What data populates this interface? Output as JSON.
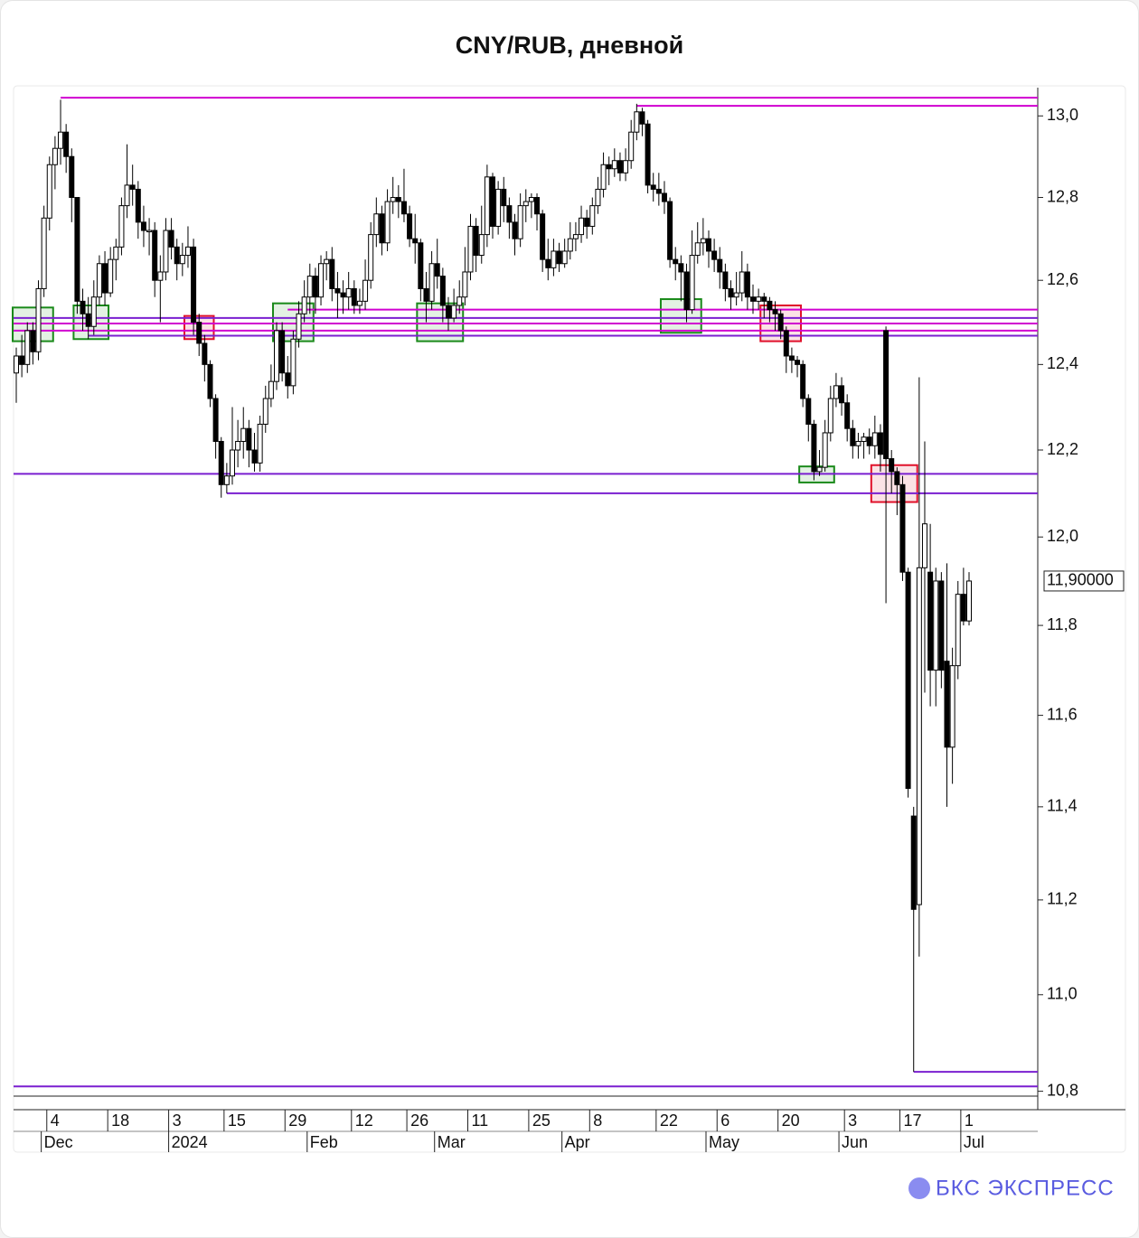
{
  "chart_data": {
    "type": "candlestick",
    "title": "CNY/RUB, дневной",
    "brand": "БКС ЭКСПРЕСС",
    "log_scale": true,
    "ylim": [
      10.79,
      13.07
    ],
    "yticks": [
      {
        "value": 10.8,
        "label": "10,8"
      },
      {
        "value": 11.0,
        "label": "11,0"
      },
      {
        "value": 11.2,
        "label": "11,2"
      },
      {
        "value": 11.4,
        "label": "11,4"
      },
      {
        "value": 11.6,
        "label": "11,6"
      },
      {
        "value": 11.8,
        "label": "11,8"
      },
      {
        "value": 12.0,
        "label": "12,0"
      },
      {
        "value": 12.2,
        "label": "12,2"
      },
      {
        "value": 12.4,
        "label": "12,4"
      },
      {
        "value": 12.6,
        "label": "12,6"
      },
      {
        "value": 12.8,
        "label": "12,8"
      },
      {
        "value": 13.0,
        "label": "13,0"
      }
    ],
    "last_price": {
      "value": 11.9,
      "label": "11,90000"
    },
    "up_color": "#ffffff",
    "down_color": "#000000",
    "day_ticks": [
      [
        6,
        "4"
      ],
      [
        17,
        "18"
      ],
      [
        28,
        "3"
      ],
      [
        38,
        "15"
      ],
      [
        49,
        "29"
      ],
      [
        61,
        "12"
      ],
      [
        71,
        "26"
      ],
      [
        82,
        "11"
      ],
      [
        93,
        "25"
      ],
      [
        104,
        "8"
      ],
      [
        116,
        "22"
      ],
      [
        127,
        "6"
      ],
      [
        138,
        "20"
      ],
      [
        150,
        "3"
      ],
      [
        160,
        "17"
      ],
      [
        171,
        "1"
      ]
    ],
    "month_ticks": [
      [
        5,
        "Dec"
      ],
      [
        28,
        "2024"
      ],
      [
        53,
        "Feb"
      ],
      [
        76,
        "Mar"
      ],
      [
        99,
        "Apr"
      ],
      [
        125,
        "May"
      ],
      [
        149,
        "Jun"
      ],
      [
        171,
        "Jul"
      ]
    ],
    "levels": [
      {
        "value": 13.045,
        "color": "#d000d0",
        "from": 8
      },
      {
        "value": 13.025,
        "color": "#d000d0",
        "from": 112
      },
      {
        "value": 12.53,
        "color": "#d000d0",
        "from": 49
      },
      {
        "value": 12.51,
        "color": "#7a1fd0",
        "from": 0
      },
      {
        "value": 12.497,
        "color": "#d000d0",
        "from": 0
      },
      {
        "value": 12.48,
        "color": "#d000d0",
        "from": 0
      },
      {
        "value": 12.468,
        "color": "#7a1fd0",
        "from": 13
      },
      {
        "value": 12.145,
        "color": "#7a1fd0",
        "from": 0
      },
      {
        "value": 12.1,
        "color": "#7a1fd0",
        "from": 38
      },
      {
        "value": 10.84,
        "color": "#7a1fd0",
        "from": 162
      },
      {
        "value": 10.81,
        "color": "#7a1fd0",
        "from": 0
      }
    ],
    "highlights": [
      {
        "from": 0,
        "to": 6,
        "low": 12.455,
        "high": 12.535,
        "color": "#1a8a1a"
      },
      {
        "from": 11,
        "to": 16,
        "low": 12.46,
        "high": 12.54,
        "color": "#1a8a1a"
      },
      {
        "from": 31,
        "to": 35,
        "low": 12.46,
        "high": 12.515,
        "color": "#e0102a"
      },
      {
        "from": 47,
        "to": 53,
        "low": 12.455,
        "high": 12.545,
        "color": "#1a8a1a"
      },
      {
        "from": 73,
        "to": 80,
        "low": 12.455,
        "high": 12.545,
        "color": "#1a8a1a"
      },
      {
        "from": 117,
        "to": 123,
        "low": 12.475,
        "high": 12.555,
        "color": "#1a8a1a"
      },
      {
        "from": 135,
        "to": 141,
        "low": 12.455,
        "high": 12.54,
        "color": "#e0102a"
      },
      {
        "from": 142,
        "to": 147,
        "low": 12.125,
        "high": 12.162,
        "color": "#1a8a1a"
      },
      {
        "from": 155,
        "to": 162,
        "low": 12.08,
        "high": 12.165,
        "color": "#e0102a"
      }
    ],
    "candles": [
      [
        12.38,
        12.44,
        12.31,
        12.42
      ],
      [
        12.42,
        12.47,
        12.37,
        12.4
      ],
      [
        12.4,
        12.5,
        12.38,
        12.48
      ],
      [
        12.48,
        12.5,
        12.4,
        12.43
      ],
      [
        12.43,
        12.6,
        12.41,
        12.58
      ],
      [
        12.58,
        12.78,
        12.56,
        12.75
      ],
      [
        12.75,
        12.9,
        12.72,
        12.88
      ],
      [
        12.88,
        12.95,
        12.82,
        12.92
      ],
      [
        12.92,
        13.04,
        12.88,
        12.96
      ],
      [
        12.96,
        12.98,
        12.86,
        12.9
      ],
      [
        12.9,
        12.92,
        12.74,
        12.8
      ],
      [
        12.8,
        12.8,
        12.52,
        12.55
      ],
      [
        12.55,
        12.58,
        12.48,
        12.52
      ],
      [
        12.52,
        12.56,
        12.46,
        12.49
      ],
      [
        12.49,
        12.6,
        12.47,
        12.56
      ],
      [
        12.56,
        12.66,
        12.54,
        12.64
      ],
      [
        12.64,
        12.67,
        12.54,
        12.57
      ],
      [
        12.57,
        12.68,
        12.56,
        12.65
      ],
      [
        12.65,
        12.7,
        12.6,
        12.68
      ],
      [
        12.68,
        12.8,
        12.66,
        12.78
      ],
      [
        12.78,
        12.93,
        12.75,
        12.83
      ],
      [
        12.83,
        12.88,
        12.78,
        12.82
      ],
      [
        12.82,
        12.84,
        12.7,
        12.74
      ],
      [
        12.74,
        12.78,
        12.68,
        12.72
      ],
      [
        12.72,
        12.75,
        12.66,
        12.72
      ],
      [
        12.72,
        12.74,
        12.56,
        12.6
      ],
      [
        12.6,
        12.66,
        12.5,
        12.62
      ],
      [
        12.62,
        12.75,
        12.6,
        12.72
      ],
      [
        12.72,
        12.75,
        12.65,
        12.68
      ],
      [
        12.68,
        12.7,
        12.6,
        12.64
      ],
      [
        12.64,
        12.69,
        12.61,
        12.66
      ],
      [
        12.66,
        12.73,
        12.63,
        12.68
      ],
      [
        12.68,
        12.7,
        12.47,
        12.5
      ],
      [
        12.5,
        12.52,
        12.42,
        12.45
      ],
      [
        12.45,
        12.47,
        12.36,
        12.4
      ],
      [
        12.4,
        12.41,
        12.3,
        12.32
      ],
      [
        12.32,
        12.33,
        12.18,
        12.22
      ],
      [
        12.22,
        12.23,
        12.09,
        12.12
      ],
      [
        12.12,
        12.17,
        12.1,
        12.14
      ],
      [
        12.14,
        12.3,
        12.12,
        12.2
      ],
      [
        12.2,
        12.27,
        12.16,
        12.22
      ],
      [
        12.22,
        12.3,
        12.18,
        12.25
      ],
      [
        12.25,
        12.27,
        12.16,
        12.2
      ],
      [
        12.2,
        12.24,
        12.15,
        12.17
      ],
      [
        12.17,
        12.28,
        12.15,
        12.26
      ],
      [
        12.26,
        12.35,
        12.24,
        12.32
      ],
      [
        12.32,
        12.4,
        12.3,
        12.36
      ],
      [
        12.36,
        12.5,
        12.34,
        12.48
      ],
      [
        12.48,
        12.5,
        12.36,
        12.38
      ],
      [
        12.38,
        12.42,
        12.32,
        12.35
      ],
      [
        12.35,
        12.48,
        12.33,
        12.46
      ],
      [
        12.46,
        12.55,
        12.44,
        12.52
      ],
      [
        12.52,
        12.6,
        12.5,
        12.56
      ],
      [
        12.56,
        12.64,
        12.52,
        12.61
      ],
      [
        12.61,
        12.63,
        12.52,
        12.56
      ],
      [
        12.56,
        12.66,
        12.54,
        12.64
      ],
      [
        12.64,
        12.67,
        12.6,
        12.65
      ],
      [
        12.65,
        12.68,
        12.55,
        12.58
      ],
      [
        12.58,
        12.62,
        12.51,
        12.57
      ],
      [
        12.57,
        12.6,
        12.52,
        12.56
      ],
      [
        12.56,
        12.62,
        12.53,
        12.58
      ],
      [
        12.58,
        12.6,
        12.52,
        12.54
      ],
      [
        12.54,
        12.58,
        12.52,
        12.55
      ],
      [
        12.55,
        12.65,
        12.53,
        12.6
      ],
      [
        12.6,
        12.74,
        12.58,
        12.71
      ],
      [
        12.71,
        12.8,
        12.68,
        12.76
      ],
      [
        12.76,
        12.78,
        12.66,
        12.69
      ],
      [
        12.69,
        12.82,
        12.67,
        12.79
      ],
      [
        12.79,
        12.85,
        12.76,
        12.8
      ],
      [
        12.8,
        12.83,
        12.75,
        12.79
      ],
      [
        12.79,
        12.87,
        12.74,
        12.76
      ],
      [
        12.76,
        12.78,
        12.68,
        12.7
      ],
      [
        12.7,
        12.76,
        12.64,
        12.69
      ],
      [
        12.69,
        12.7,
        12.55,
        12.58
      ],
      [
        12.58,
        12.62,
        12.5,
        12.55
      ],
      [
        12.55,
        12.67,
        12.53,
        12.64
      ],
      [
        12.64,
        12.7,
        12.58,
        12.61
      ],
      [
        12.61,
        12.63,
        12.5,
        12.54
      ],
      [
        12.54,
        12.56,
        12.48,
        12.51
      ],
      [
        12.51,
        12.58,
        12.5,
        12.54
      ],
      [
        12.54,
        12.6,
        12.52,
        12.56
      ],
      [
        12.56,
        12.68,
        12.54,
        12.62
      ],
      [
        12.62,
        12.76,
        12.6,
        12.73
      ],
      [
        12.73,
        12.75,
        12.62,
        12.66
      ],
      [
        12.66,
        12.78,
        12.64,
        12.71
      ],
      [
        12.71,
        12.88,
        12.68,
        12.85
      ],
      [
        12.85,
        12.86,
        12.7,
        12.73
      ],
      [
        12.73,
        12.84,
        12.71,
        12.82
      ],
      [
        12.82,
        12.85,
        12.74,
        12.78
      ],
      [
        12.78,
        12.8,
        12.7,
        12.74
      ],
      [
        12.74,
        12.76,
        12.66,
        12.7
      ],
      [
        12.7,
        12.81,
        12.68,
        12.78
      ],
      [
        12.78,
        12.82,
        12.74,
        12.79
      ],
      [
        12.79,
        12.81,
        12.75,
        12.8
      ],
      [
        12.8,
        12.81,
        12.72,
        12.76
      ],
      [
        12.76,
        12.77,
        12.62,
        12.65
      ],
      [
        12.65,
        12.7,
        12.6,
        12.63
      ],
      [
        12.63,
        12.7,
        12.61,
        12.67
      ],
      [
        12.67,
        12.69,
        12.62,
        12.64
      ],
      [
        12.64,
        12.7,
        12.63,
        12.67
      ],
      [
        12.67,
        12.74,
        12.65,
        12.7
      ],
      [
        12.7,
        12.74,
        12.67,
        12.71
      ],
      [
        12.71,
        12.78,
        12.69,
        12.75
      ],
      [
        12.75,
        12.77,
        12.7,
        12.73
      ],
      [
        12.73,
        12.8,
        12.71,
        12.78
      ],
      [
        12.78,
        12.85,
        12.76,
        12.82
      ],
      [
        12.82,
        12.91,
        12.8,
        12.88
      ],
      [
        12.88,
        12.9,
        12.83,
        12.87
      ],
      [
        12.87,
        12.92,
        12.85,
        12.89
      ],
      [
        12.89,
        12.91,
        12.84,
        12.86
      ],
      [
        12.86,
        12.92,
        12.84,
        12.89
      ],
      [
        12.89,
        12.99,
        12.87,
        12.96
      ],
      [
        12.96,
        13.03,
        12.94,
        13.01
      ],
      [
        13.01,
        13.02,
        12.95,
        12.98
      ],
      [
        12.98,
        12.99,
        12.81,
        12.83
      ],
      [
        12.83,
        12.86,
        12.79,
        12.82
      ],
      [
        12.82,
        12.86,
        12.78,
        12.81
      ],
      [
        12.81,
        12.84,
        12.76,
        12.79
      ],
      [
        12.79,
        12.8,
        12.63,
        12.65
      ],
      [
        12.65,
        12.68,
        12.6,
        12.64
      ],
      [
        12.64,
        12.66,
        12.55,
        12.62
      ],
      [
        12.62,
        12.64,
        12.5,
        12.53
      ],
      [
        12.53,
        12.72,
        12.52,
        12.66
      ],
      [
        12.66,
        12.74,
        12.64,
        12.69
      ],
      [
        12.69,
        12.75,
        12.66,
        12.7
      ],
      [
        12.7,
        12.72,
        12.63,
        12.67
      ],
      [
        12.67,
        12.7,
        12.62,
        12.65
      ],
      [
        12.65,
        12.68,
        12.58,
        12.62
      ],
      [
        12.62,
        12.64,
        12.55,
        12.58
      ],
      [
        12.58,
        12.6,
        12.53,
        12.56
      ],
      [
        12.56,
        12.62,
        12.54,
        12.57
      ],
      [
        12.57,
        12.67,
        12.55,
        12.62
      ],
      [
        12.62,
        12.64,
        12.53,
        12.56
      ],
      [
        12.56,
        12.59,
        12.52,
        12.55
      ],
      [
        12.55,
        12.58,
        12.53,
        12.56
      ],
      [
        12.56,
        12.57,
        12.51,
        12.55
      ],
      [
        12.55,
        12.56,
        12.5,
        12.53
      ],
      [
        12.53,
        12.55,
        12.48,
        12.52
      ],
      [
        12.52,
        12.53,
        12.46,
        12.48
      ],
      [
        12.48,
        12.49,
        12.38,
        12.42
      ],
      [
        12.42,
        12.44,
        12.38,
        12.41
      ],
      [
        12.41,
        12.42,
        12.37,
        12.4
      ],
      [
        12.4,
        12.41,
        12.3,
        12.32
      ],
      [
        12.32,
        12.33,
        12.22,
        12.26
      ],
      [
        12.26,
        12.27,
        12.13,
        12.15
      ],
      [
        12.15,
        12.2,
        12.14,
        12.16
      ],
      [
        12.16,
        12.27,
        12.15,
        12.24
      ],
      [
        12.24,
        12.35,
        12.22,
        12.32
      ],
      [
        12.32,
        12.38,
        12.3,
        12.35
      ],
      [
        12.35,
        12.37,
        12.28,
        12.31
      ],
      [
        12.31,
        12.33,
        12.22,
        12.25
      ],
      [
        12.25,
        12.27,
        12.18,
        12.21
      ],
      [
        12.21,
        12.24,
        12.18,
        12.22
      ],
      [
        12.22,
        12.24,
        12.18,
        12.23
      ],
      [
        12.23,
        12.25,
        12.19,
        12.21
      ],
      [
        12.21,
        12.28,
        12.18,
        12.24
      ],
      [
        12.24,
        12.26,
        12.15,
        12.19
      ],
      [
        12.48,
        12.49,
        11.85,
        12.18
      ],
      [
        12.18,
        12.2,
        12.1,
        12.15
      ],
      [
        12.15,
        12.16,
        12.05,
        12.12
      ],
      [
        12.12,
        12.14,
        11.9,
        11.92
      ],
      [
        11.92,
        11.93,
        11.42,
        11.44
      ],
      [
        11.38,
        11.4,
        10.84,
        11.18
      ],
      [
        11.19,
        12.37,
        11.08,
        11.93
      ],
      [
        11.93,
        12.22,
        11.65,
        12.03
      ],
      [
        11.92,
        12.03,
        11.62,
        11.7
      ],
      [
        11.7,
        11.93,
        11.62,
        11.9
      ],
      [
        11.9,
        11.92,
        11.66,
        11.7
      ],
      [
        11.72,
        11.94,
        11.4,
        11.53
      ],
      [
        11.53,
        11.75,
        11.45,
        11.71
      ],
      [
        11.71,
        11.9,
        11.68,
        11.87
      ],
      [
        11.87,
        11.93,
        11.8,
        11.81
      ],
      [
        11.81,
        11.92,
        11.8,
        11.9
      ]
    ]
  }
}
